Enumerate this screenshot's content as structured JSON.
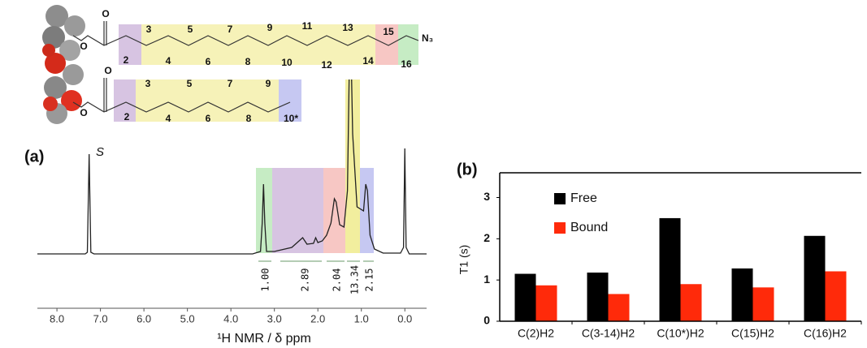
{
  "molecule": {
    "long_chain": {
      "carbonyl_oxygen": "O",
      "ester_oxygen": "O",
      "carbons": [
        "2",
        "3",
        "4",
        "5",
        "6",
        "7",
        "8",
        "9",
        "10",
        "11",
        "12",
        "13",
        "14",
        "15",
        "16"
      ],
      "end_group": "N₃"
    },
    "short_chain": {
      "carbonyl_oxygen": "O",
      "ester_oxygen": "O",
      "carbons": [
        "2",
        "3",
        "4",
        "5",
        "6",
        "7",
        "8",
        "9",
        "10*"
      ]
    }
  },
  "chart_data": [
    {
      "type": "line",
      "panel": "(a)",
      "x_label": "¹H NMR / δ ppm",
      "color": "#222",
      "peak_label": "S",
      "x": [
        8.45,
        7.35,
        7.3,
        7.26,
        7.22,
        7.15,
        3.5,
        3.32,
        3.28,
        3.25,
        3.22,
        3.18,
        3.0,
        2.6,
        2.35,
        2.25,
        2.1,
        2.05,
        2.0,
        1.9,
        1.8,
        1.7,
        1.62,
        1.58,
        1.5,
        1.4,
        1.32,
        1.27,
        1.24,
        1.2,
        1.1,
        0.95,
        0.9,
        0.86,
        0.8,
        0.7,
        0.5,
        0.1,
        0.03,
        0.0,
        -0.03,
        -0.1,
        -0.5
      ],
      "values": [
        2,
        2,
        4,
        125,
        4,
        2,
        2,
        5,
        40,
        88,
        40,
        5,
        5,
        10,
        22,
        14,
        15,
        22,
        16,
        18,
        25,
        40,
        70,
        66,
        38,
        35,
        80,
        260,
        260,
        150,
        60,
        55,
        88,
        80,
        25,
        8,
        3,
        3,
        10,
        132,
        10,
        2,
        2
      ],
      "xlim": [
        8.45,
        -0.5
      ],
      "ylim": [
        0,
        215
      ],
      "xticks": [
        {
          "value": 8,
          "label": "8.0"
        },
        {
          "value": 7,
          "label": "7.0"
        },
        {
          "value": 6,
          "label": "6.0"
        },
        {
          "value": 5,
          "label": "5.0"
        },
        {
          "value": 4,
          "label": "4.0"
        },
        {
          "value": 3,
          "label": "3.0"
        },
        {
          "value": 2,
          "label": "2.0"
        },
        {
          "value": 1,
          "label": "1.0"
        },
        {
          "value": 0,
          "label": "0.0"
        }
      ],
      "integrals": [
        {
          "value": 1,
          "label": "1.00"
        },
        2.89,
        2.04,
        13.34,
        2.15
      ]
    },
    {
      "type": "bar",
      "panel": "(b)",
      "y_label": "T1 (s)",
      "categories": [
        "C(2)H2",
        "C(3-14)H2",
        "C(10*)H2",
        "C(15)H2",
        "C(16)H2"
      ],
      "series": [
        {
          "name": "Free",
          "color": "#000000",
          "values": [
            1.15,
            1.18,
            2.5,
            1.28,
            2.07
          ]
        },
        {
          "name": "Bound",
          "color": "#ff2a0a",
          "values": [
            0.87,
            0.66,
            0.9,
            0.82,
            1.21
          ]
        }
      ],
      "ylim": [
        0,
        3.6
      ],
      "yticks": [
        0,
        1,
        2,
        3
      ],
      "legend": "upper left"
    }
  ]
}
